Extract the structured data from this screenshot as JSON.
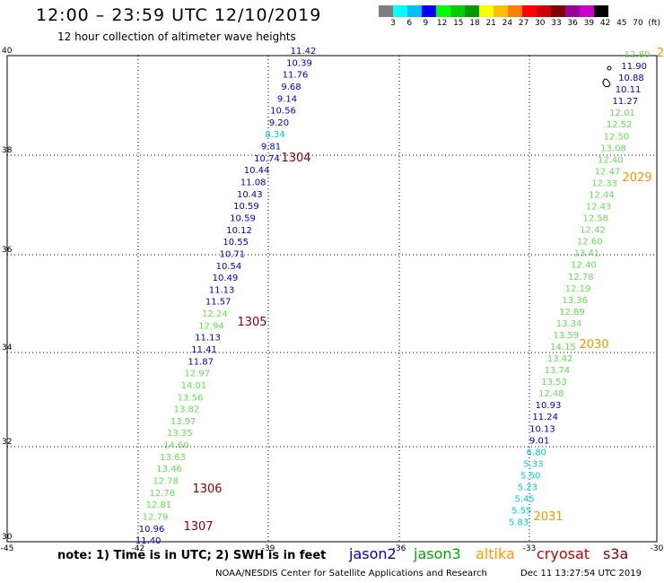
{
  "header": {
    "title": "12:00 – 23:59 UTC 12/10/2019",
    "subtitle": "12 hour collection of altimeter wave heights"
  },
  "scale": {
    "colors": [
      "#7f7f7f",
      "#00ffff",
      "#00bfff",
      "#0000ff",
      "#00ff00",
      "#00cc00",
      "#009900",
      "#ffff00",
      "#ffbf00",
      "#ff8000",
      "#ff0000",
      "#cc0000",
      "#800000",
      "#990099",
      "#cc00cc",
      "#000000"
    ],
    "ticks": [
      "3",
      "6",
      "9",
      "12",
      "15",
      "18",
      "21",
      "24",
      "27",
      "30",
      "33",
      "36",
      "39",
      "42",
      "45",
      "70",
      "(ft)"
    ]
  },
  "map": {
    "lon_ticks": [
      "-45",
      "-42",
      "-39",
      "-36",
      "-33",
      "-30"
    ],
    "lat_ticks": [
      "40",
      "38",
      "36",
      "34",
      "32",
      "30"
    ],
    "track_colors": {
      "c": "#00cccc",
      "b": "#0000cc",
      "g": "#66dd55",
      "o": "#ee9900",
      "r": "#880000"
    },
    "track_left": [
      {
        "v": "11.42",
        "c": "b"
      },
      {
        "v": "10.39",
        "c": "b"
      },
      {
        "v": "11.76",
        "c": "b"
      },
      {
        "v": "9.68",
        "c": "b"
      },
      {
        "v": "9.14",
        "c": "b"
      },
      {
        "v": "10.56",
        "c": "b"
      },
      {
        "v": "9.20",
        "c": "b"
      },
      {
        "v": "8.34",
        "c": "c"
      },
      {
        "v": "9.81",
        "c": "b"
      },
      {
        "v": "10.74",
        "c": "b"
      },
      {
        "v": "10.44",
        "c": "b"
      },
      {
        "v": "11.08",
        "c": "b"
      },
      {
        "v": "10.43",
        "c": "b"
      },
      {
        "v": "10.59",
        "c": "b"
      },
      {
        "v": "10.59",
        "c": "b"
      },
      {
        "v": "10.12",
        "c": "b"
      },
      {
        "v": "10.55",
        "c": "b"
      },
      {
        "v": "10.71",
        "c": "b"
      },
      {
        "v": "10.54",
        "c": "b"
      },
      {
        "v": "10.49",
        "c": "b"
      },
      {
        "v": "11.13",
        "c": "b"
      },
      {
        "v": "11.57",
        "c": "b"
      },
      {
        "v": "12.24",
        "c": "g"
      },
      {
        "v": "12.94",
        "c": "g"
      },
      {
        "v": "11.13",
        "c": "b"
      },
      {
        "v": "11.41",
        "c": "b"
      },
      {
        "v": "11.87",
        "c": "b"
      },
      {
        "v": "12.97",
        "c": "g"
      },
      {
        "v": "14.01",
        "c": "g"
      },
      {
        "v": "13.56",
        "c": "g"
      },
      {
        "v": "13.82",
        "c": "g"
      },
      {
        "v": "13.97",
        "c": "g"
      },
      {
        "v": "13.35",
        "c": "g"
      },
      {
        "v": "14.60",
        "c": "g"
      },
      {
        "v": "13.63",
        "c": "g"
      },
      {
        "v": "13.46",
        "c": "g"
      },
      {
        "v": "12.78",
        "c": "g"
      },
      {
        "v": "12.78",
        "c": "g"
      },
      {
        "v": "12.81",
        "c": "g"
      },
      {
        "v": "12.79",
        "c": "g"
      },
      {
        "v": "10.96",
        "c": "b"
      },
      {
        "v": "11.40",
        "c": "b"
      }
    ],
    "track_right": [
      {
        "v": "12.80",
        "c": "g"
      },
      {
        "v": "11.90",
        "c": "b"
      },
      {
        "v": "10.88",
        "c": "b"
      },
      {
        "v": "10.11",
        "c": "b"
      },
      {
        "v": "11.27",
        "c": "b"
      },
      {
        "v": "12.01",
        "c": "g"
      },
      {
        "v": "12.52",
        "c": "g"
      },
      {
        "v": "12.50",
        "c": "g"
      },
      {
        "v": "13.08",
        "c": "g"
      },
      {
        "v": "12.40",
        "c": "g"
      },
      {
        "v": "12.47",
        "c": "g"
      },
      {
        "v": "12.33",
        "c": "g"
      },
      {
        "v": "12.44",
        "c": "g"
      },
      {
        "v": "12.43",
        "c": "g"
      },
      {
        "v": "12.58",
        "c": "g"
      },
      {
        "v": "12.42",
        "c": "g"
      },
      {
        "v": "12.60",
        "c": "g"
      },
      {
        "v": "13.41",
        "c": "g"
      },
      {
        "v": "12.40",
        "c": "g"
      },
      {
        "v": "12.78",
        "c": "g"
      },
      {
        "v": "12.19",
        "c": "g"
      },
      {
        "v": "13.36",
        "c": "g"
      },
      {
        "v": "12.89",
        "c": "g"
      },
      {
        "v": "13.34",
        "c": "g"
      },
      {
        "v": "13.59",
        "c": "g"
      },
      {
        "v": "14.15",
        "c": "g"
      },
      {
        "v": "13.42",
        "c": "g"
      },
      {
        "v": "13.74",
        "c": "g"
      },
      {
        "v": "13.53",
        "c": "g"
      },
      {
        "v": "12.48",
        "c": "g"
      },
      {
        "v": "10.93",
        "c": "b"
      },
      {
        "v": "11.24",
        "c": "b"
      },
      {
        "v": "10.13",
        "c": "b"
      },
      {
        "v": "9.01",
        "c": "b"
      },
      {
        "v": "6.80",
        "c": "c"
      },
      {
        "v": "5.33",
        "c": "c"
      },
      {
        "v": "5.50",
        "c": "c"
      },
      {
        "v": "5.23",
        "c": "c"
      },
      {
        "v": "5.45",
        "c": "c"
      },
      {
        "v": "5.55",
        "c": "c"
      },
      {
        "v": "5.83",
        "c": "c"
      }
    ],
    "time_labels": [
      {
        "t": "1304",
        "c": "r"
      },
      {
        "t": "1305",
        "c": "r"
      },
      {
        "t": "1306",
        "c": "r"
      },
      {
        "t": "1307",
        "c": "r"
      },
      {
        "t": "2",
        "c": "o"
      },
      {
        "t": "2029",
        "c": "o"
      },
      {
        "t": "2030",
        "c": "o"
      },
      {
        "t": "2031",
        "c": "o"
      }
    ]
  },
  "footer": {
    "note": "note:  1) Time is in UTC;  2) SWH is in feet",
    "legend": [
      {
        "name": "jason2",
        "color": "#0000cc"
      },
      {
        "name": "jason3",
        "color": "#00aa00"
      },
      {
        "name": "altika",
        "color": "#ff9900"
      },
      {
        "name": "cryosat",
        "color": "#cc0000"
      },
      {
        "name": "s3a",
        "color": "#880000"
      }
    ],
    "credit": "NOAA/NESDIS Center for Satellite Applications and Research",
    "timestamp": "Dec 11 13:27:54 UTC 2019"
  }
}
